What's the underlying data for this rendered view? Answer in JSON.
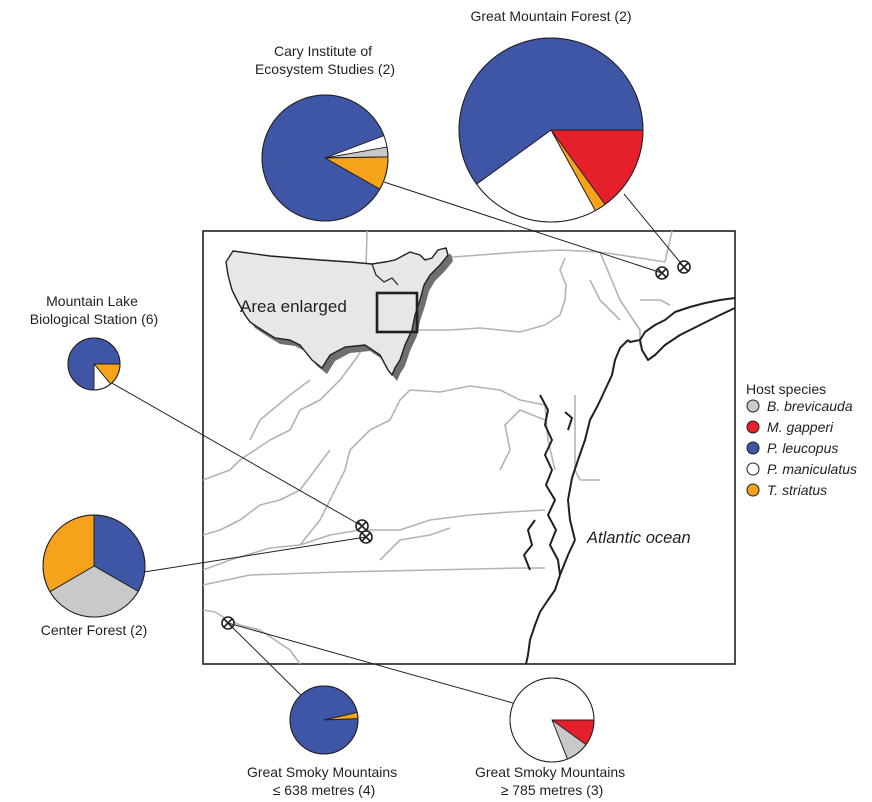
{
  "inset": {
    "label": "Area enlarged"
  },
  "ocean_label": "Atlantic ocean",
  "legend": {
    "title": "Host species",
    "items": [
      {
        "species": "B. brevicauda",
        "color": "#c8c9cb"
      },
      {
        "species": "M. gapperi",
        "color": "#e5202a"
      },
      {
        "species": "P. leucopus",
        "color": "#3f56a6"
      },
      {
        "species": "P. maniculatus",
        "color": "#ffffff"
      },
      {
        "species": "T. striatus",
        "color": "#f6a21b"
      }
    ]
  },
  "chart_data": {
    "type": "pie",
    "note_series": "host species proportions per sampling site; sample count shown in parentheses",
    "sites": [
      {
        "name_lines": [
          "Great Mountain Forest (2)"
        ],
        "slices": {
          "P. leucopus": 0.6,
          "M. gapperi": 0.15,
          "T. striatus": 0.02,
          "P. maniculatus": 0.23,
          "B. brevicauda": 0.0
        }
      },
      {
        "name_lines": [
          "Cary Institute of",
          "Ecosystem Studies (2)"
        ],
        "slices": {
          "P. leucopus": 0.86,
          "B. brevicauda": 0.025,
          "T. striatus": 0.085,
          "M. gapperi": 0.0,
          "P. maniculatus": 0.0
        }
      },
      {
        "name_lines": [
          "Mountain Lake",
          "Biological Station (6)"
        ],
        "slices": {
          "P. leucopus": 0.75,
          "T. striatus": 0.14,
          "P. maniculatus": 0.11,
          "B. brevicauda": 0.0,
          "M. gapperi": 0.0
        }
      },
      {
        "name_lines": [
          "Center Forest (2)"
        ],
        "slices": {
          "P. leucopus": 0.333,
          "B. brevicauda": 0.333,
          "T. striatus": 0.334,
          "M. gapperi": 0.0,
          "P. maniculatus": 0.0
        }
      },
      {
        "name_lines": [
          "Great Smoky Mountains",
          "≤ 638 metres (4)"
        ],
        "slices": {
          "P. leucopus": 0.97,
          "T. striatus": 0.03,
          "B. brevicauda": 0.0,
          "M. gapperi": 0.0,
          "P. maniculatus": 0.0
        }
      },
      {
        "name_lines": [
          "Great Smoky Mountains",
          "≥ 785 metres (3)"
        ],
        "slices": {
          "M. gapperi": 0.1,
          "B. brevicauda": 0.09,
          "P. maniculatus": 0.81,
          "P. leucopus": 0.0,
          "T. striatus": 0.0
        }
      }
    ]
  }
}
